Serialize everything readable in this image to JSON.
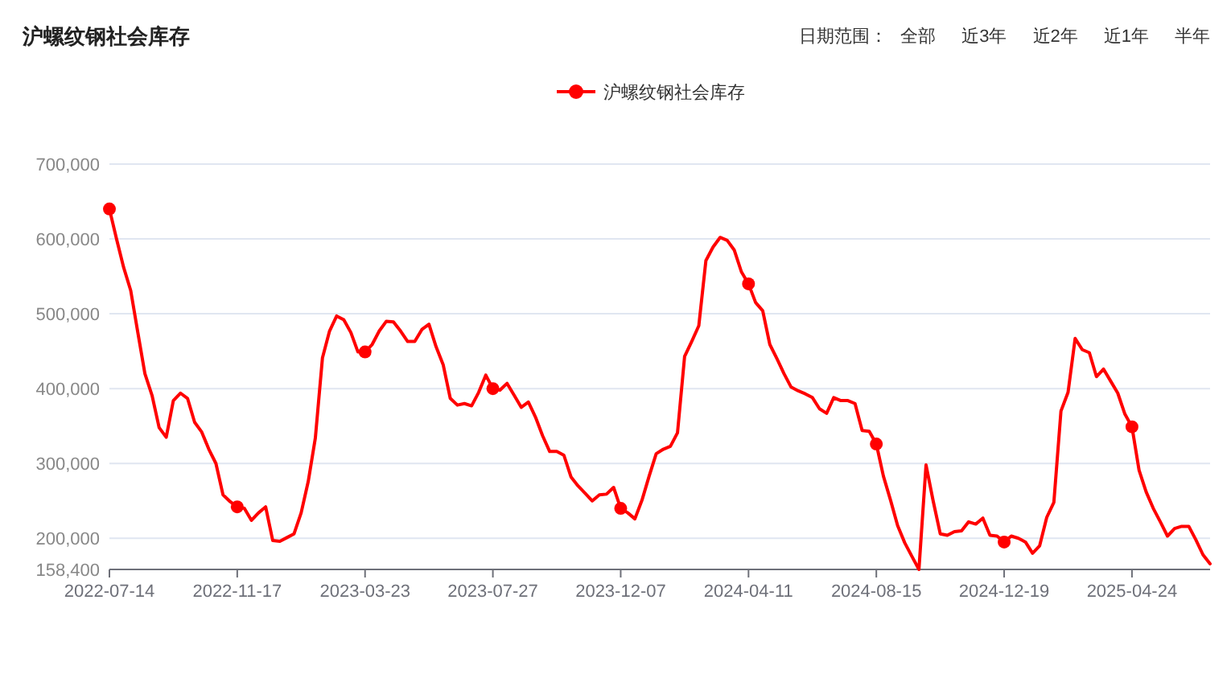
{
  "chart_data": {
    "type": "line",
    "title": "沪螺纹钢社会库存",
    "annotations": [
      "日期范围：",
      "全部",
      "近3年",
      "近2年",
      "近1年",
      "半年"
    ],
    "categories": [
      "2022-07-14",
      null,
      null,
      null,
      null,
      null,
      null,
      null,
      null,
      null,
      null,
      null,
      null,
      null,
      null,
      null,
      null,
      null,
      "2022-11-17",
      null,
      null,
      null,
      null,
      null,
      null,
      null,
      null,
      null,
      null,
      null,
      null,
      null,
      null,
      null,
      null,
      null,
      "2023-03-23",
      null,
      null,
      null,
      null,
      null,
      null,
      null,
      null,
      null,
      null,
      null,
      null,
      null,
      null,
      null,
      null,
      null,
      "2023-07-27",
      null,
      null,
      null,
      null,
      null,
      null,
      null,
      null,
      null,
      null,
      null,
      null,
      null,
      null,
      null,
      null,
      null,
      "2023-12-07",
      null,
      null,
      null,
      null,
      null,
      null,
      null,
      null,
      null,
      null,
      null,
      null,
      null,
      null,
      null,
      null,
      null,
      "2024-04-11",
      null,
      null,
      null,
      null,
      null,
      null,
      null,
      null,
      null,
      null,
      null,
      null,
      null,
      null,
      null,
      null,
      null,
      "2024-08-15",
      null,
      null,
      null,
      null,
      null,
      null,
      null,
      null,
      null,
      null,
      null,
      null,
      null,
      null,
      null,
      null,
      null,
      "2024-12-19",
      null,
      null,
      null,
      null,
      null,
      null,
      null,
      null,
      null,
      null,
      null,
      null,
      null,
      null,
      null,
      null,
      null,
      "2025-04-24",
      null,
      null,
      null,
      null,
      null,
      null,
      null,
      null,
      null,
      null,
      null
    ],
    "series": [
      {
        "name": "沪螺纹钢社会库存",
        "color": "#ff0000",
        "values": [
          640000,
          600000,
          562000,
          531000,
          475000,
          420000,
          391000,
          348000,
          335000,
          384000,
          394000,
          387000,
          355000,
          342000,
          319000,
          300000,
          258000,
          249000,
          242000,
          240000,
          224000,
          234000,
          242000,
          197000,
          196000,
          201000,
          206000,
          234000,
          276000,
          334000,
          441000,
          477000,
          497000,
          492000,
          475000,
          449000,
          449000,
          459000,
          477000,
          490000,
          489000,
          477000,
          463000,
          463000,
          479000,
          486000,
          456000,
          432000,
          387000,
          378000,
          380000,
          377000,
          395000,
          418000,
          400000,
          398000,
          407000,
          391000,
          375000,
          382000,
          362000,
          337000,
          316000,
          316000,
          311000,
          282000,
          270000,
          260000,
          250000,
          258000,
          259000,
          268000,
          240000,
          234000,
          226000,
          251000,
          283000,
          313000,
          319000,
          323000,
          341000,
          443000,
          463000,
          484000,
          571000,
          589000,
          602000,
          598000,
          585000,
          556000,
          540000,
          515000,
          504000,
          459000,
          440000,
          420000,
          402000,
          397000,
          393000,
          388000,
          373000,
          367000,
          388000,
          384000,
          384000,
          380000,
          344000,
          343000,
          326000,
          283000,
          251000,
          217000,
          194000,
          176000,
          158400,
          298000,
          250000,
          206000,
          204000,
          209000,
          210000,
          222000,
          219000,
          227000,
          204000,
          203000,
          195000,
          203000,
          200000,
          195000,
          180000,
          190000,
          228000,
          248000,
          370000,
          395000,
          467000,
          452000,
          448000,
          416000,
          426000,
          410000,
          394000,
          366000,
          349000,
          291000,
          262000,
          240000,
          222000,
          203000,
          213000,
          216000,
          216000,
          198000,
          178000,
          166000
        ]
      },
      {
        "type": "scatter",
        "color": "#ff0000",
        "values": [
          640000,
          null,
          null,
          null,
          null,
          null,
          null,
          null,
          null,
          null,
          null,
          null,
          null,
          null,
          null,
          null,
          null,
          null,
          242000,
          null,
          null,
          null,
          null,
          null,
          null,
          null,
          null,
          null,
          null,
          null,
          null,
          null,
          null,
          null,
          null,
          null,
          449000,
          null,
          null,
          null,
          null,
          null,
          null,
          null,
          null,
          null,
          null,
          null,
          null,
          null,
          null,
          null,
          null,
          null,
          400000,
          null,
          null,
          null,
          null,
          null,
          null,
          null,
          null,
          null,
          null,
          null,
          null,
          null,
          null,
          null,
          null,
          null,
          240000,
          null,
          null,
          null,
          null,
          null,
          null,
          null,
          null,
          null,
          null,
          null,
          null,
          null,
          null,
          null,
          null,
          null,
          540000,
          null,
          null,
          null,
          null,
          null,
          null,
          null,
          null,
          null,
          null,
          null,
          null,
          null,
          null,
          null,
          null,
          null,
          326000,
          null,
          null,
          null,
          null,
          null,
          null,
          null,
          null,
          null,
          null,
          null,
          null,
          null,
          null,
          null,
          null,
          null,
          195000,
          null,
          null,
          null,
          null,
          null,
          null,
          null,
          null,
          null,
          null,
          null,
          null,
          null,
          null,
          null,
          null,
          null,
          349000,
          null,
          null,
          null,
          null,
          null,
          null,
          null,
          null,
          null,
          null,
          null
        ]
      }
    ],
    "ylim": [
      158400,
      700000
    ],
    "yticks": [
      {
        "value": 158400,
        "label": "158,400"
      },
      {
        "value": 200000,
        "label": "200,000"
      },
      {
        "value": 300000,
        "label": "300,000"
      },
      {
        "value": 400000,
        "label": "400,000"
      },
      {
        "value": 500000,
        "label": "500,000"
      },
      {
        "value": 600000,
        "label": "600,000"
      },
      {
        "value": 700000,
        "label": "700,000"
      }
    ],
    "grid": "y",
    "legend": "top",
    "line_style": "solid"
  }
}
